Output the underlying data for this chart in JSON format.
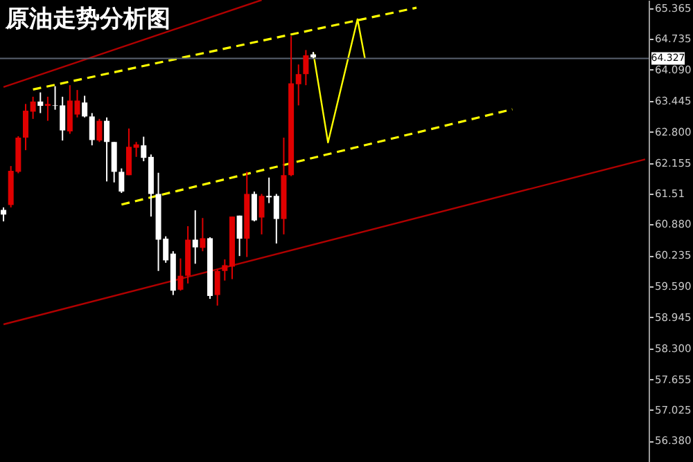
{
  "chart_data": {
    "type": "candlestick",
    "title": "原油走势分析图",
    "categories": [
      null,
      null,
      null,
      null,
      null,
      null,
      null,
      null,
      null,
      null,
      null,
      null,
      null,
      null,
      null,
      null,
      null,
      null,
      null,
      null,
      null,
      null,
      null,
      null,
      null,
      null,
      null,
      null,
      null,
      null,
      null,
      null,
      null,
      null,
      null,
      null,
      null,
      null,
      null,
      null,
      null,
      null,
      null,
      null,
      null,
      null,
      null,
      null,
      null,
      null,
      null,
      null,
      null,
      null,
      null,
      null,
      null,
      null,
      null,
      null,
      null,
      null,
      null,
      null,
      null,
      null,
      null,
      null,
      null,
      null,
      null,
      null,
      null,
      null,
      null,
      null,
      null,
      null,
      null,
      null,
      null,
      null,
      null,
      null,
      null,
      null,
      null,
      null
    ],
    "ohlc": [
      [
        61.18,
        61.23,
        60.94,
        61.08
      ],
      [
        61.28,
        62.09,
        61.23,
        61.99
      ],
      [
        61.97,
        62.71,
        61.94,
        62.68
      ],
      [
        62.68,
        63.38,
        62.42,
        63.24
      ],
      [
        63.22,
        63.53,
        63.07,
        63.43
      ],
      [
        63.43,
        63.62,
        63.19,
        63.34
      ],
      [
        63.34,
        63.53,
        63.03,
        63.38
      ],
      [
        63.35,
        63.75,
        63.26,
        63.34
      ],
      [
        63.35,
        63.53,
        62.62,
        62.83
      ],
      [
        62.81,
        63.77,
        62.76,
        63.45
      ],
      [
        63.16,
        63.67,
        63.1,
        63.45
      ],
      [
        63.41,
        63.55,
        63.1,
        63.12
      ],
      [
        63.12,
        63.19,
        62.52,
        62.63
      ],
      [
        62.62,
        63.07,
        62.59,
        63.03
      ],
      [
        63.03,
        63.1,
        61.77,
        62.59
      ],
      [
        62.59,
        62.59,
        61.75,
        61.97
      ],
      [
        61.97,
        62.04,
        61.53,
        61.56
      ],
      [
        61.9,
        62.87,
        61.9,
        62.49
      ],
      [
        62.47,
        62.59,
        62.28,
        62.54
      ],
      [
        62.52,
        62.7,
        62.19,
        62.26
      ],
      [
        62.28,
        62.33,
        61.04,
        61.51
      ],
      [
        61.51,
        61.95,
        59.91,
        60.56
      ],
      [
        60.58,
        60.63,
        60.08,
        60.13
      ],
      [
        60.27,
        60.32,
        59.41,
        59.5
      ],
      [
        59.52,
        60.17,
        59.5,
        59.81
      ],
      [
        59.81,
        60.84,
        59.65,
        60.56
      ],
      [
        60.56,
        61.17,
        60.06,
        60.4
      ],
      [
        60.39,
        61.01,
        60.32,
        60.59
      ],
      [
        60.59,
        60.61,
        59.33,
        59.39
      ],
      [
        59.41,
        59.94,
        59.19,
        59.91
      ],
      [
        59.91,
        60.15,
        59.71,
        60.03
      ],
      [
        60.0,
        61.04,
        59.74,
        61.04
      ],
      [
        61.06,
        61.06,
        60.22,
        60.58
      ],
      [
        60.58,
        61.97,
        60.2,
        61.51
      ],
      [
        61.51,
        61.56,
        60.94,
        60.96
      ],
      [
        61.02,
        61.51,
        60.67,
        61.47
      ],
      [
        61.47,
        61.85,
        61.32,
        61.44
      ],
      [
        61.47,
        61.51,
        60.48,
        60.99
      ],
      [
        60.99,
        62.68,
        60.67,
        61.9
      ],
      [
        61.9,
        64.79,
        61.88,
        63.81
      ],
      [
        63.79,
        64.2,
        63.35,
        64.0
      ],
      [
        64.0,
        64.5,
        63.77,
        64.39
      ],
      [
        64.41,
        64.46,
        64.33,
        64.35
      ],
      null,
      null,
      null,
      null,
      null,
      null,
      null,
      null,
      null,
      null,
      null,
      null,
      null,
      null,
      null,
      null,
      null,
      null,
      null,
      null,
      null,
      null,
      null,
      null,
      null,
      null,
      null,
      null,
      null,
      null,
      null,
      null,
      null,
      null,
      null,
      null,
      null,
      null,
      null,
      null,
      null,
      null,
      null,
      null,
      null
    ],
    "colors": [
      "#ffffff",
      "#e00000",
      "#e00000",
      "#e00000",
      "#e00000",
      "#ffffff",
      "#e00000",
      "#ffffff",
      "#ffffff",
      "#e00000",
      "#e00000",
      "#ffffff",
      "#ffffff",
      "#e00000",
      "#ffffff",
      "#ffffff",
      "#ffffff",
      "#e00000",
      "#e00000",
      "#ffffff",
      "#ffffff",
      "#ffffff",
      "#ffffff",
      "#ffffff",
      "#e00000",
      "#e00000",
      "#ffffff",
      "#e00000",
      "#ffffff",
      "#e00000",
      "#e00000",
      "#e00000",
      "#ffffff",
      "#e00000",
      "#ffffff",
      "#e00000",
      "#ffffff",
      "#ffffff",
      "#e00000",
      "#e00000",
      "#e00000",
      "#e00000",
      "#ffffff",
      null,
      null,
      null,
      null,
      null,
      null,
      null,
      null,
      null,
      null,
      null,
      null,
      null,
      null,
      null,
      null,
      null,
      null,
      null,
      null,
      null,
      null,
      null,
      null,
      null,
      null,
      null,
      null,
      null,
      null,
      null,
      null,
      null,
      null,
      null,
      null,
      null,
      null,
      null,
      null,
      null,
      null,
      null,
      null,
      null
    ],
    "series": [
      {
        "type": "line",
        "color": "#ffff00",
        "line_style": "dashed",
        "values": [
          null,
          null,
          null,
          null,
          63.68,
          null,
          null,
          null,
          null,
          null,
          null,
          null,
          null,
          null,
          null,
          null,
          null,
          null,
          null,
          null,
          null,
          null,
          null,
          null,
          null,
          null,
          null,
          null,
          null,
          null,
          null,
          null,
          null,
          null,
          null,
          null,
          null,
          null,
          null,
          null,
          null,
          null,
          null,
          null,
          null,
          null,
          null,
          null,
          null,
          null,
          null,
          null,
          null,
          null,
          null,
          null,
          65.38,
          null,
          null,
          null,
          null,
          null,
          null,
          null,
          null,
          null,
          null,
          null,
          null,
          null,
          null,
          null,
          null,
          null,
          null,
          null,
          null,
          null,
          null,
          null,
          null,
          null,
          null,
          null,
          null,
          null,
          null,
          null
        ]
      },
      {
        "type": "line",
        "color": "#ffff00",
        "line_style": "dashed",
        "values": [
          null,
          null,
          null,
          null,
          null,
          null,
          null,
          null,
          null,
          null,
          null,
          null,
          null,
          null,
          null,
          null,
          61.29,
          null,
          null,
          null,
          null,
          null,
          null,
          null,
          null,
          null,
          null,
          null,
          null,
          null,
          null,
          null,
          null,
          null,
          null,
          null,
          null,
          null,
          null,
          null,
          null,
          null,
          null,
          null,
          null,
          null,
          null,
          null,
          null,
          null,
          null,
          null,
          null,
          null,
          null,
          null,
          null,
          null,
          null,
          null,
          null,
          null,
          null,
          null,
          null,
          null,
          null,
          null,
          null,
          63.27,
          null,
          null,
          null,
          null,
          null,
          null,
          null,
          null,
          null,
          null,
          null,
          null,
          null,
          null,
          null,
          null,
          null,
          null
        ]
      },
      {
        "type": "line",
        "color": "#b00000",
        "line_style": "solid",
        "values": [
          63.73,
          null,
          null,
          null,
          null,
          null,
          null,
          null,
          null,
          null,
          null,
          null,
          null,
          null,
          null,
          null,
          null,
          null,
          null,
          null,
          null,
          null,
          null,
          null,
          null,
          null,
          null,
          null,
          null,
          null,
          null,
          null,
          null,
          null,
          null,
          65.54,
          null,
          null,
          null,
          null,
          null,
          null,
          null,
          null,
          null,
          null,
          null,
          null,
          null,
          null,
          null,
          null,
          null,
          null,
          null,
          null,
          null,
          null,
          null,
          null,
          null,
          null,
          null,
          null,
          null,
          null,
          null,
          null,
          null,
          null,
          null,
          null,
          null,
          null,
          null,
          null,
          null,
          null,
          null,
          null,
          null,
          null,
          null,
          null,
          null,
          null,
          null,
          null
        ]
      },
      {
        "type": "line",
        "color": "#b00000",
        "line_style": "solid",
        "values": [
          58.8,
          null,
          null,
          null,
          null,
          null,
          null,
          null,
          null,
          null,
          null,
          null,
          null,
          null,
          null,
          null,
          null,
          null,
          null,
          null,
          null,
          null,
          null,
          null,
          null,
          null,
          null,
          null,
          null,
          null,
          null,
          null,
          null,
          null,
          null,
          null,
          null,
          null,
          null,
          null,
          null,
          null,
          null,
          null,
          null,
          null,
          null,
          null,
          null,
          null,
          null,
          null,
          null,
          null,
          null,
          null,
          null,
          null,
          null,
          null,
          null,
          null,
          null,
          null,
          null,
          null,
          null,
          null,
          null,
          null,
          null,
          null,
          null,
          null,
          null,
          null,
          null,
          null,
          null,
          null,
          null,
          null,
          null,
          null,
          null,
          null,
          null,
          62.23
        ]
      },
      {
        "type": "line",
        "color": "#ffff00",
        "line_style": "solid",
        "values": [
          null,
          null,
          null,
          null,
          null,
          null,
          null,
          null,
          null,
          null,
          null,
          null,
          null,
          null,
          null,
          null,
          null,
          null,
          null,
          null,
          null,
          null,
          null,
          null,
          null,
          null,
          null,
          null,
          null,
          null,
          null,
          null,
          null,
          null,
          null,
          null,
          null,
          null,
          null,
          null,
          null,
          null,
          64.45,
          null,
          62.58,
          null,
          null,
          null,
          65.14,
          64.33,
          null,
          null,
          null,
          null,
          null,
          null,
          null,
          null,
          null,
          null,
          null,
          null,
          null,
          null,
          null,
          null,
          null,
          null,
          null,
          null,
          null,
          null,
          null,
          null,
          null,
          null,
          null,
          null,
          null,
          null,
          null,
          null,
          null,
          null,
          null,
          null,
          null,
          null
        ]
      }
    ],
    "ref_lines": [
      {
        "axis": "y",
        "value": 64.327,
        "label": "64.327",
        "color": "#5a6270"
      }
    ],
    "ylim": [
      55.94,
      65.54
    ],
    "yticks": [
      65.365,
      64.735,
      {
        "value": 64.09,
        "label": "64.090"
      },
      63.445,
      {
        "value": 62.8,
        "label": "62.800"
      },
      62.155,
      61.51,
      {
        "value": 60.88,
        "label": "60.880"
      },
      60.235,
      {
        "value": 59.59,
        "label": "59.590"
      },
      58.945,
      {
        "value": 58.3,
        "label": "58.300"
      },
      57.655,
      57.025,
      {
        "value": 56.38,
        "label": "56.380"
      }
    ],
    "tick_labels": "y",
    "grid": false
  }
}
